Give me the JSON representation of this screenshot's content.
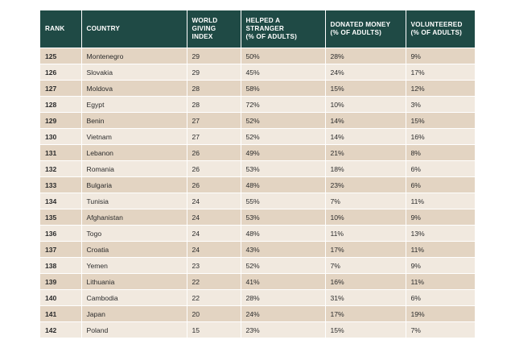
{
  "table": {
    "headers": {
      "rank": "RANK",
      "country": "COUNTRY",
      "wgi_1": "WORLD",
      "wgi_2": "GIVING",
      "wgi_3": "INDEX",
      "helped_1": "HELPED A",
      "helped_2": "STRANGER",
      "helped_3": "(% OF ADULTS)",
      "donated_1": "DONATED MONEY",
      "donated_2": "(% OF ADULTS)",
      "volunteered_1": "VOLUNTEERED",
      "volunteered_2": "(% OF ADULTS)"
    },
    "rows": [
      {
        "rank": "125",
        "country": "Montenegro",
        "index": "29",
        "helped": "50%",
        "donated": "28%",
        "volunteered": "9%"
      },
      {
        "rank": "126",
        "country": "Slovakia",
        "index": "29",
        "helped": "45%",
        "donated": "24%",
        "volunteered": "17%"
      },
      {
        "rank": "127",
        "country": "Moldova",
        "index": "28",
        "helped": "58%",
        "donated": "15%",
        "volunteered": "12%"
      },
      {
        "rank": "128",
        "country": "Egypt",
        "index": "28",
        "helped": "72%",
        "donated": "10%",
        "volunteered": "3%"
      },
      {
        "rank": "129",
        "country": "Benin",
        "index": "27",
        "helped": "52%",
        "donated": "14%",
        "volunteered": "15%"
      },
      {
        "rank": "130",
        "country": "Vietnam",
        "index": "27",
        "helped": "52%",
        "donated": "14%",
        "volunteered": "16%"
      },
      {
        "rank": "131",
        "country": "Lebanon",
        "index": "26",
        "helped": "49%",
        "donated": "21%",
        "volunteered": "8%"
      },
      {
        "rank": "132",
        "country": "Romania",
        "index": "26",
        "helped": "53%",
        "donated": "18%",
        "volunteered": "6%"
      },
      {
        "rank": "133",
        "country": "Bulgaria",
        "index": "26",
        "helped": "48%",
        "donated": "23%",
        "volunteered": "6%"
      },
      {
        "rank": "134",
        "country": "Tunisia",
        "index": "24",
        "helped": "55%",
        "donated": "7%",
        "volunteered": "11%"
      },
      {
        "rank": "135",
        "country": "Afghanistan",
        "index": "24",
        "helped": "53%",
        "donated": "10%",
        "volunteered": "9%"
      },
      {
        "rank": "136",
        "country": "Togo",
        "index": "24",
        "helped": "48%",
        "donated": "11%",
        "volunteered": "13%"
      },
      {
        "rank": "137",
        "country": "Croatia",
        "index": "24",
        "helped": "43%",
        "donated": "17%",
        "volunteered": "11%"
      },
      {
        "rank": "138",
        "country": "Yemen",
        "index": "23",
        "helped": "52%",
        "donated": "7%",
        "volunteered": "9%"
      },
      {
        "rank": "139",
        "country": "Lithuania",
        "index": "22",
        "helped": "41%",
        "donated": "16%",
        "volunteered": "11%"
      },
      {
        "rank": "140",
        "country": "Cambodia",
        "index": "22",
        "helped": "28%",
        "donated": "31%",
        "volunteered": "6%"
      },
      {
        "rank": "141",
        "country": "Japan",
        "index": "20",
        "helped": "24%",
        "donated": "17%",
        "volunteered": "19%"
      },
      {
        "rank": "142",
        "country": "Poland",
        "index": "15",
        "helped": "23%",
        "donated": "15%",
        "volunteered": "7%"
      }
    ]
  },
  "colors": {
    "header_bg": "#1f4a45",
    "row_dark": "#e3d4c2",
    "row_light": "#f1e9df"
  }
}
